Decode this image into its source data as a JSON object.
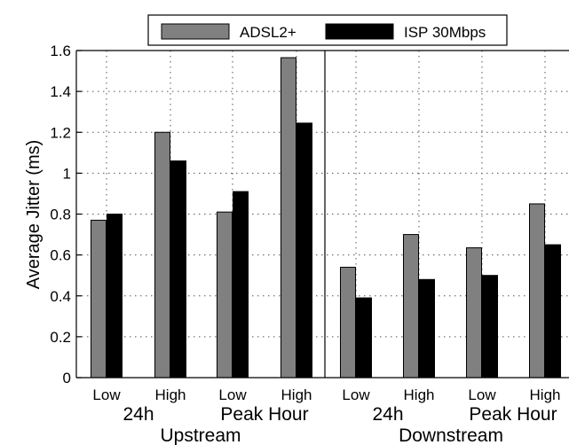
{
  "chart_data": {
    "type": "bar",
    "ylabel": "Average Jitter (ms)",
    "ylim": [
      0,
      1.6
    ],
    "y_ticks": [
      0,
      0.2,
      0.4,
      0.6,
      0.8,
      1,
      1.2,
      1.4,
      1.6
    ],
    "y_tick_labels": [
      "0",
      "0.2",
      "0.4",
      "0.6",
      "0.8",
      "1",
      "1.2",
      "1.4",
      "1.6"
    ],
    "grid": true,
    "legend_position": "top-center",
    "categories": [
      "Low",
      "High",
      "Low",
      "High",
      "Low",
      "High",
      "Low",
      "High"
    ],
    "subgroups": [
      {
        "label": "24h"
      },
      {
        "label": "Peak Hour"
      },
      {
        "label": "24h"
      },
      {
        "label": "Peak Hour"
      }
    ],
    "groups": [
      {
        "label": "Upstream"
      },
      {
        "label": "Downstream"
      }
    ],
    "series": [
      {
        "name": "ADSL2+",
        "color": "#808080",
        "values": [
          0.77,
          1.2,
          0.81,
          1.565,
          0.54,
          0.7,
          0.635,
          0.85
        ]
      },
      {
        "name": "ISP 30Mbps",
        "color": "#000000",
        "values": [
          0.8,
          1.06,
          0.91,
          1.245,
          0.39,
          0.48,
          0.5,
          0.65
        ]
      }
    ]
  }
}
